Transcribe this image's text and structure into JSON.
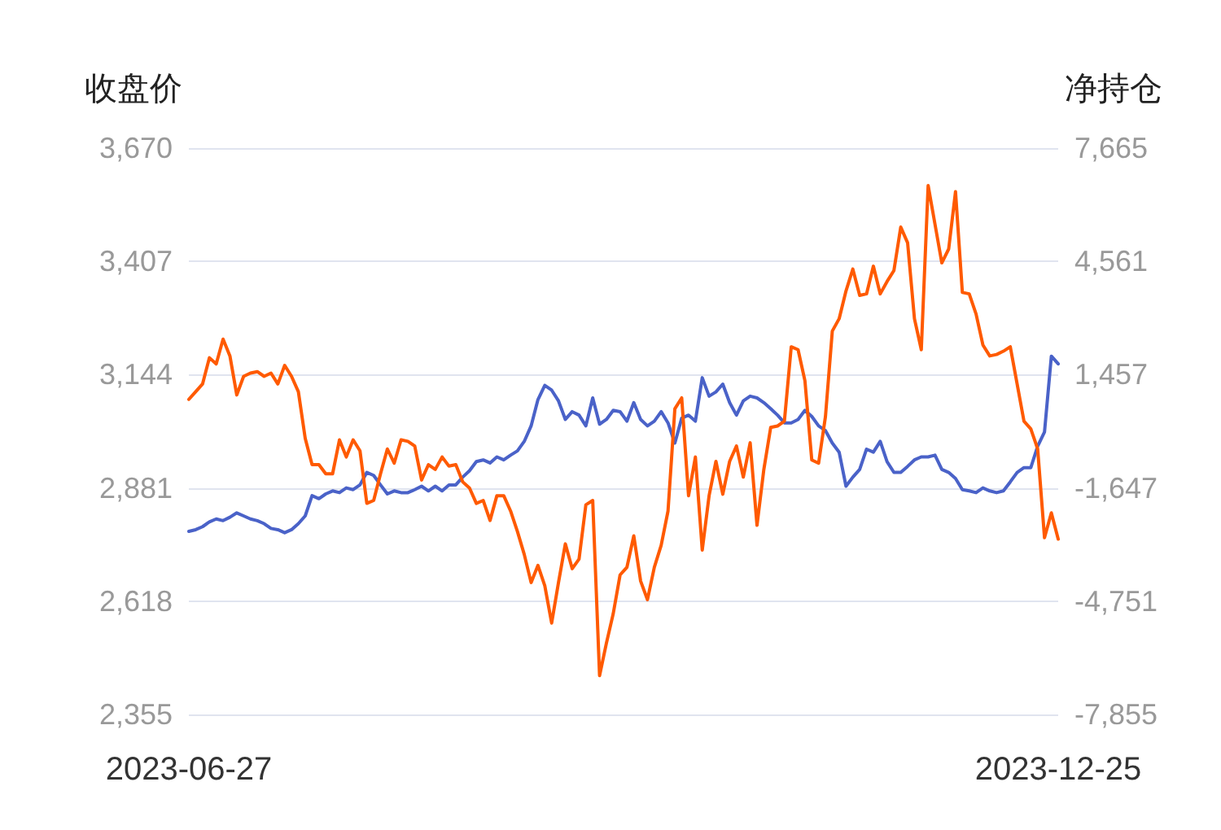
{
  "chart_data": {
    "type": "line",
    "ylabel": "收盘价",
    "y2label": "净持仓",
    "categories": [
      "2023-06-27",
      null,
      null,
      null,
      null,
      null,
      null,
      null,
      null,
      null,
      null,
      null,
      null,
      null,
      null,
      null,
      null,
      null,
      null,
      null,
      null,
      null,
      null,
      null,
      null,
      null,
      null,
      null,
      null,
      null,
      null,
      null,
      null,
      null,
      null,
      null,
      null,
      null,
      null,
      null,
      null,
      null,
      null,
      null,
      null,
      null,
      null,
      null,
      null,
      null,
      null,
      null,
      null,
      null,
      null,
      null,
      null,
      null,
      null,
      null,
      null,
      null,
      null,
      null,
      null,
      null,
      null,
      null,
      null,
      null,
      null,
      null,
      null,
      null,
      null,
      null,
      null,
      null,
      null,
      null,
      null,
      null,
      null,
      null,
      null,
      null,
      null,
      null,
      null,
      null,
      null,
      null,
      null,
      null,
      null,
      null,
      null,
      null,
      null,
      null,
      null,
      null,
      null,
      null,
      null,
      null,
      null,
      null,
      null,
      null,
      null,
      null,
      null,
      null,
      null,
      null,
      null,
      null,
      null,
      null,
      null,
      null,
      null,
      null,
      null,
      null,
      null,
      "2023-12-25"
    ],
    "series": [
      {
        "name": null,
        "color": "#4a62c8",
        "values": [
          2780,
          2784,
          2791,
          2802,
          2809,
          2805,
          2813,
          2823,
          2816,
          2809,
          2805,
          2798,
          2787,
          2784,
          2777,
          2784,
          2798,
          2816,
          2863,
          2856,
          2867,
          2874,
          2870,
          2881,
          2877,
          2888,
          2917,
          2910,
          2888,
          2867,
          2874,
          2870,
          2870,
          2877,
          2885,
          2874,
          2885,
          2874,
          2888,
          2888,
          2906,
          2921,
          2942,
          2946,
          2939,
          2953,
          2946,
          2957,
          2967,
          2989,
          3025,
          3086,
          3119,
          3108,
          3083,
          3040,
          3058,
          3050,
          3025,
          3090,
          3029,
          3040,
          3061,
          3058,
          3036,
          3079,
          3040,
          3025,
          3036,
          3058,
          3032,
          2985,
          3043,
          3050,
          3036,
          3137,
          3094,
          3104,
          3122,
          3079,
          3050,
          3083,
          3094,
          3090,
          3079,
          3065,
          3050,
          3032,
          3032,
          3040,
          3061,
          3047,
          3025,
          3014,
          2985,
          2964,
          2885,
          2906,
          2924,
          2971,
          2964,
          2989,
          2942,
          2917,
          2917,
          2931,
          2946,
          2953,
          2953,
          2957,
          2924,
          2917,
          2903,
          2877,
          2874,
          2870,
          2881,
          2874,
          2870,
          2874,
          2895,
          2917,
          2928,
          2928,
          2978,
          3011,
          3187,
          3169
        ]
      },
      {
        "name": null,
        "color": "#ff5a00",
        "axis": "y2",
        "values": [
          780,
          990,
          1200,
          1920,
          1750,
          2430,
          1970,
          900,
          1410,
          1500,
          1540,
          1410,
          1500,
          1200,
          1710,
          1410,
          990,
          -290,
          -1010,
          -1010,
          -1260,
          -1260,
          -330,
          -800,
          -330,
          -630,
          -2070,
          -1990,
          -1260,
          -580,
          -970,
          -330,
          -370,
          -500,
          -1430,
          -1010,
          -1140,
          -800,
          -1050,
          -1010,
          -1480,
          -1650,
          -2070,
          -1990,
          -2540,
          -1860,
          -1860,
          -2280,
          -2840,
          -3470,
          -4240,
          -3770,
          -4330,
          -5350,
          -4240,
          -3180,
          -3860,
          -3600,
          -2110,
          -1990,
          -6790,
          -5900,
          -5090,
          -4030,
          -3820,
          -2960,
          -4200,
          -4710,
          -3820,
          -3220,
          -2280,
          520,
          820,
          -1860,
          -800,
          -3350,
          -1860,
          -920,
          -1820,
          -920,
          -500,
          -1350,
          -410,
          -2670,
          -1140,
          10,
          50,
          180,
          2220,
          2140,
          1290,
          -880,
          -970,
          310,
          2650,
          2990,
          3750,
          4350,
          3630,
          3670,
          4430,
          3670,
          4010,
          4310,
          5500,
          5070,
          2990,
          2140,
          6640,
          5580,
          4520,
          4900,
          6470,
          3710,
          3670,
          3120,
          2270,
          1970,
          2010,
          2100,
          2220,
          1200,
          180,
          -30,
          -580,
          -3010,
          -2330,
          -3050
        ]
      }
    ],
    "ylim": [
      2355,
      3670
    ],
    "yticks": [
      {
        "value": 2355,
        "label": "2,355"
      },
      {
        "value": 2618,
        "label": "2,618"
      },
      {
        "value": 2881,
        "label": "2,881"
      },
      {
        "value": 3144,
        "label": "3,144"
      },
      {
        "value": 3407,
        "label": "3,407"
      },
      {
        "value": 3670,
        "label": "3,670"
      }
    ],
    "y2lim": [
      -7855,
      7665
    ],
    "y2ticks": [
      {
        "value": -7855,
        "label": "-7,855"
      },
      {
        "value": -4751,
        "label": "-4,751"
      },
      {
        "value": -1647,
        "label": "-1,647"
      },
      {
        "value": 1457,
        "label": "1,457"
      },
      {
        "value": 4561,
        "label": "4,561"
      },
      {
        "value": 7665,
        "label": "7,665"
      }
    ],
    "grid": "y",
    "marker": "none",
    "line_style": "solid"
  }
}
